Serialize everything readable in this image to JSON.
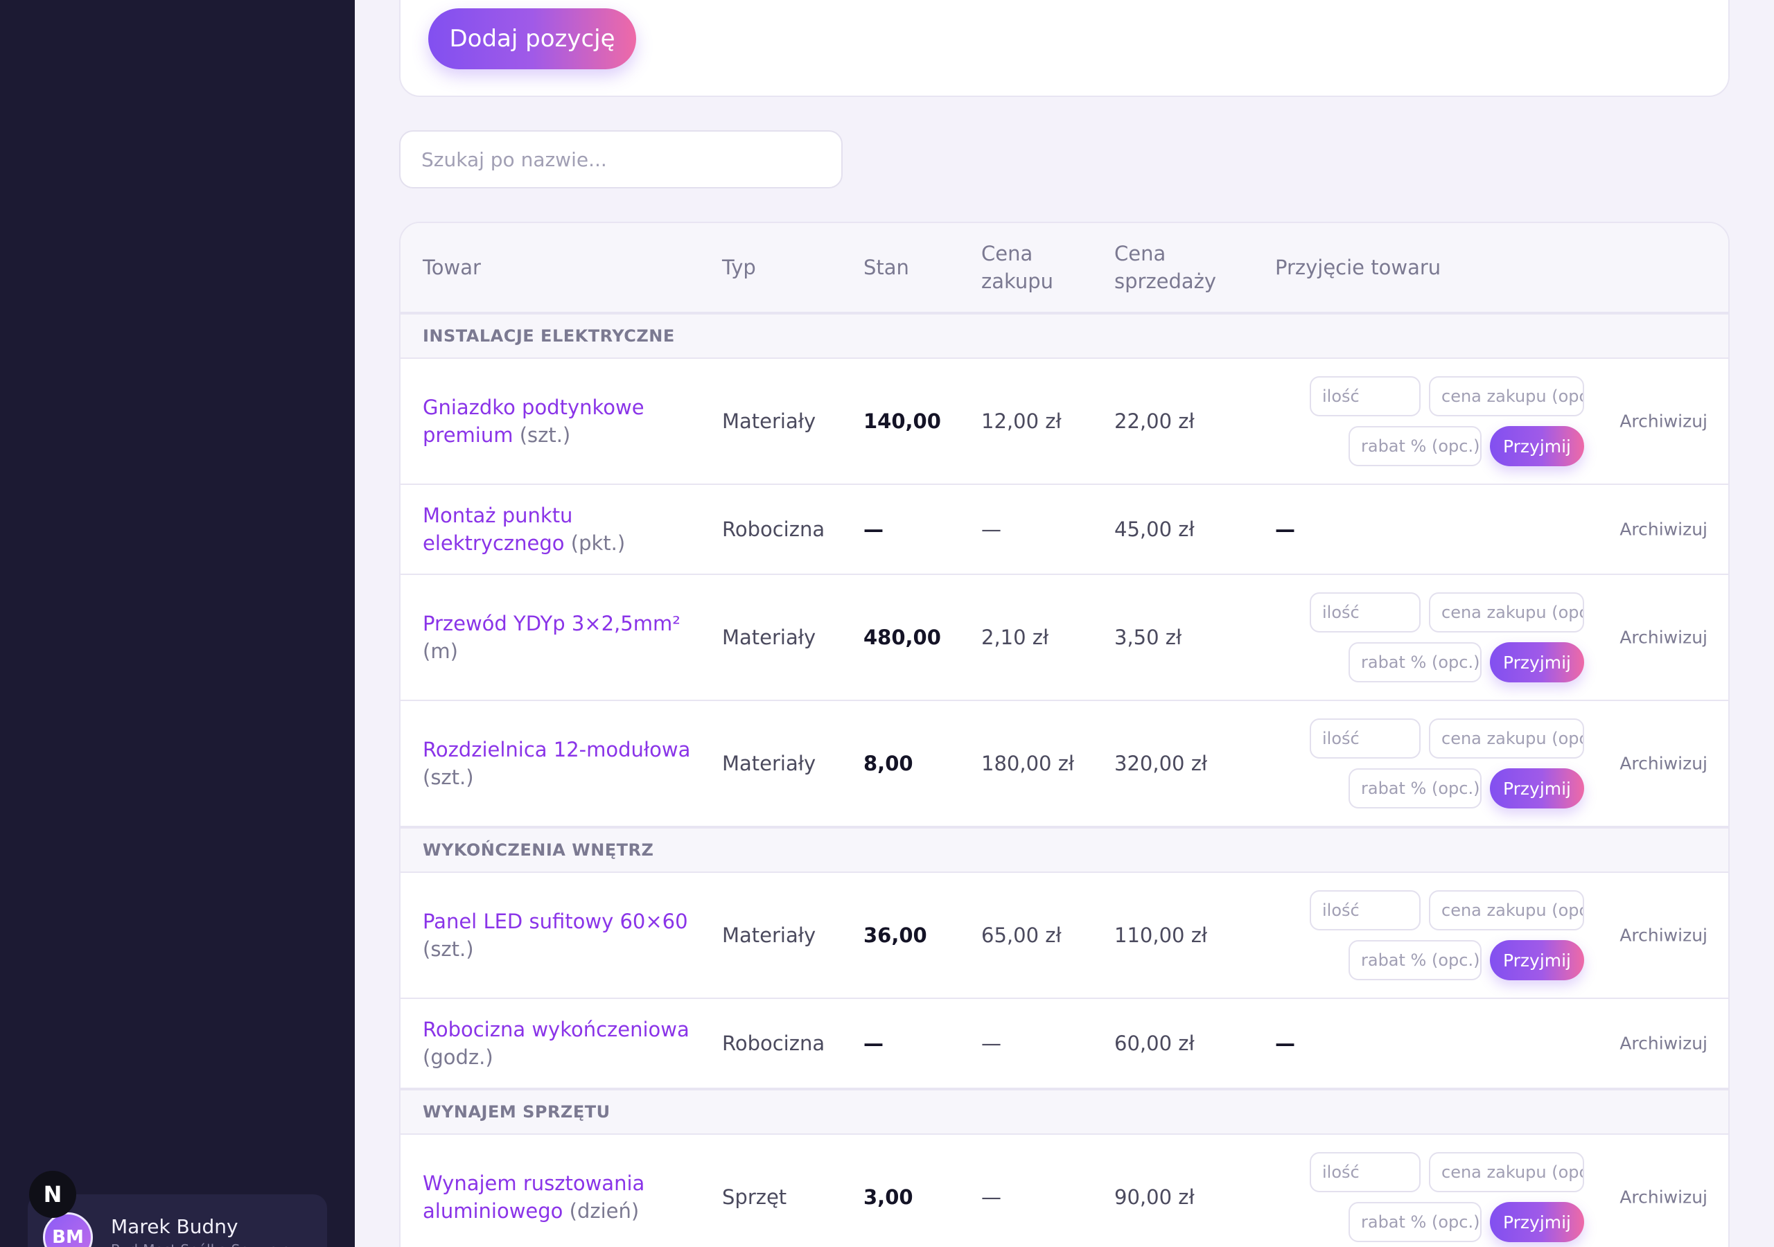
{
  "sidebar": {
    "badge": "N",
    "user": {
      "initials": "BM",
      "name": "Marek Budny",
      "company": "Bud-Most Spółka Sp. z o.o."
    }
  },
  "actions": {
    "add_label": "Dodaj pozycję"
  },
  "search": {
    "placeholder": "Szukaj po nazwie..."
  },
  "table": {
    "headers": {
      "name": "Towar",
      "type": "Typ",
      "stock": "Stan",
      "buy_1": "Cena",
      "buy_2": "zakupu",
      "sell_1": "Cena",
      "sell_2": "sprzedaży",
      "receive": "Przyjęcie towaru"
    },
    "receive_form": {
      "qty_placeholder": "ilość",
      "price_placeholder": "cena zakupu (opc.)",
      "discount_placeholder": "rabat % (opc.)",
      "submit_label": "Przyjmij"
    },
    "archive_label": "Archiwizuj",
    "groups": [
      {
        "title": "INSTALACJE ELEKTRYCZNE",
        "rows": [
          {
            "name": "Gniazdko podtynkowe premium",
            "unit": "(szt.)",
            "type": "Materiały",
            "stock": "140,00",
            "buy": "12,00 zł",
            "sell": "22,00 zł"
          },
          {
            "name": "Montaż punktu elektrycznego",
            "unit": "(pkt.)",
            "type": "Robocizna",
            "stock": "—",
            "buy": "—",
            "sell": "45,00 zł",
            "receive": "—"
          },
          {
            "name": "Przewód YDYp 3×2,5mm²",
            "unit": "(m)",
            "type": "Materiały",
            "stock": "480,00",
            "buy": "2,10 zł",
            "sell": "3,50 zł"
          },
          {
            "name": "Rozdzielnica 12-modułowa",
            "unit": "(szt.)",
            "type": "Materiały",
            "stock": "8,00",
            "buy": "180,00 zł",
            "sell": "320,00 zł"
          }
        ]
      },
      {
        "title": "WYKOŃCZENIA WNĘTRZ",
        "rows": [
          {
            "name": "Panel LED sufitowy 60×60",
            "unit": "(szt.)",
            "type": "Materiały",
            "stock": "36,00",
            "buy": "65,00 zł",
            "sell": "110,00 zł"
          },
          {
            "name": "Robocizna wykończeniowa",
            "unit": "(godz.)",
            "type": "Robocizna",
            "stock": "—",
            "buy": "—",
            "sell": "60,00 zł",
            "receive": "—"
          }
        ]
      },
      {
        "title": "WYNAJEM SPRZĘTU",
        "rows": [
          {
            "name": "Wynajem rusztowania aluminiowego",
            "unit": "(dzień)",
            "type": "Sprzęt",
            "stock": "3,00",
            "buy": "—",
            "sell": "90,00 zł"
          }
        ]
      }
    ]
  }
}
